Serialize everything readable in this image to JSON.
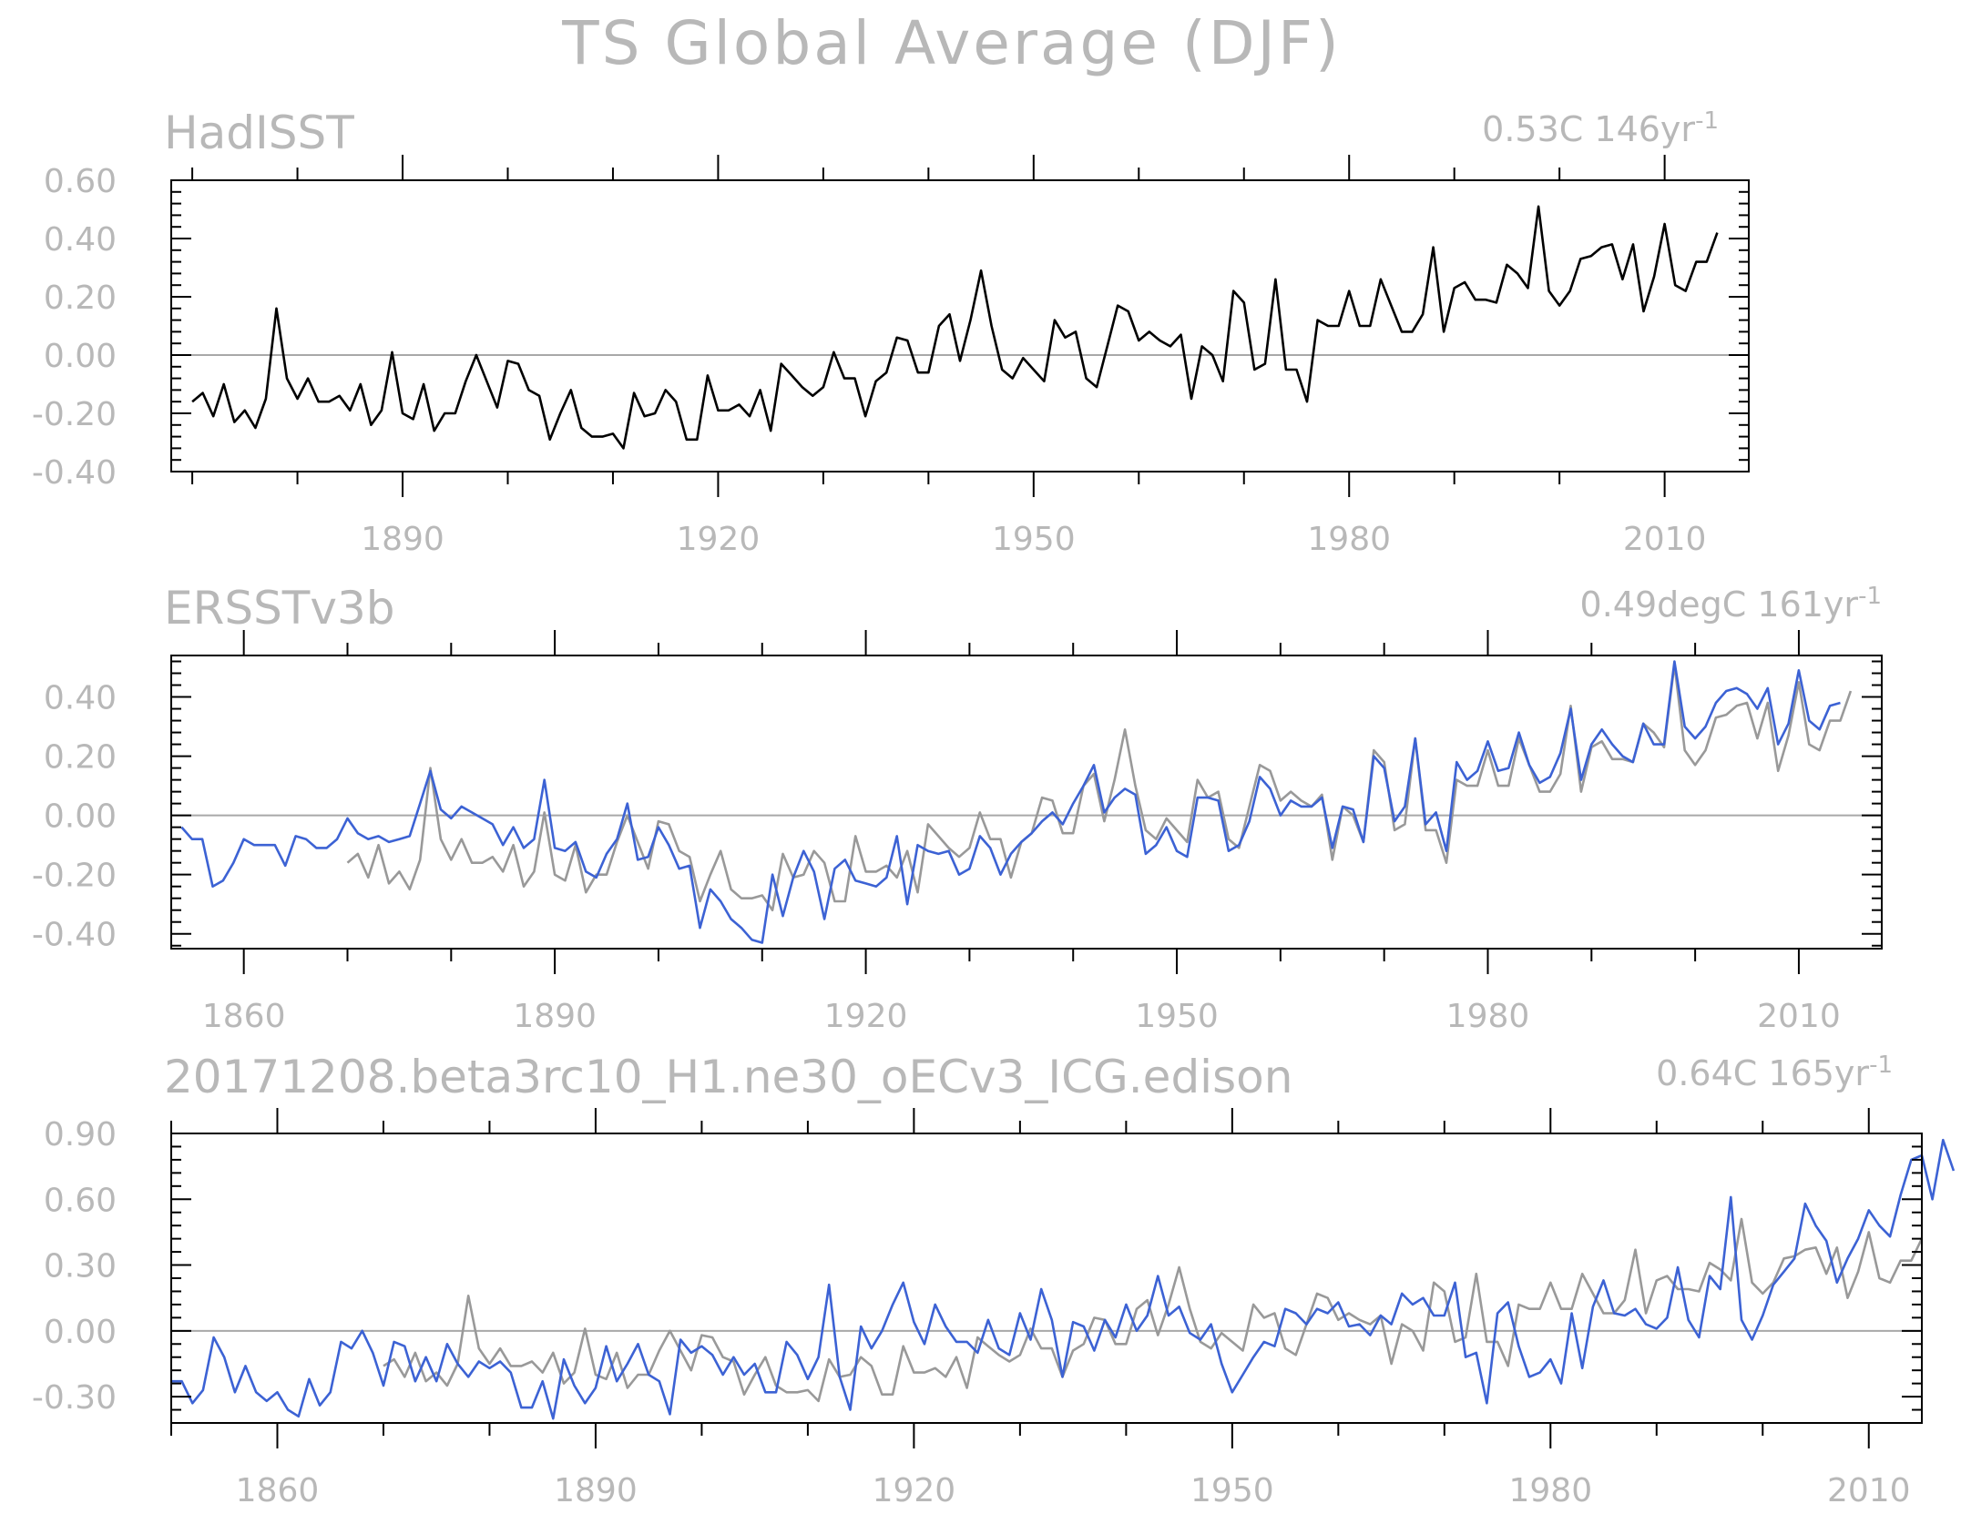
{
  "figure": {
    "title": "TS Global Average (DJF)"
  },
  "colors": {
    "observations": "#000000",
    "reference": "#999999",
    "primary": "#3c62d4",
    "zero_line": "#a8a8a8",
    "text": "#b8b8b8"
  },
  "chart_data": [
    {
      "type": "line",
      "title": "HadISST",
      "trend_value": "0.53C",
      "trend_period": "146yr",
      "trend_exponent": "-1",
      "xlim": [
        1868,
        2018
      ],
      "ylim": [
        -0.4,
        0.6
      ],
      "yticks": [
        -0.4,
        -0.2,
        0.0,
        0.2,
        0.4,
        0.6
      ],
      "ytick_labels": [
        "-0.40",
        "-0.20",
        "0.00",
        "0.20",
        "0.40",
        "0.60"
      ],
      "xticks": [
        1890,
        1920,
        1950,
        1980,
        2010
      ],
      "xtick_labels": [
        "1890",
        "1920",
        "1950",
        "1980",
        "2010"
      ],
      "zero_line": true,
      "series": [
        {
          "color": "#000000",
          "x_start": 1870,
          "values": [
            -0.16,
            -0.13,
            -0.21,
            -0.1,
            -0.23,
            -0.19,
            -0.25,
            -0.15,
            0.16,
            -0.08,
            -0.15,
            -0.08,
            -0.16,
            -0.16,
            -0.14,
            -0.19,
            -0.1,
            -0.24,
            -0.19,
            0.01,
            -0.2,
            -0.22,
            -0.1,
            -0.26,
            -0.2,
            -0.2,
            -0.09,
            0.0,
            -0.09,
            -0.18,
            -0.02,
            -0.03,
            -0.12,
            -0.14,
            -0.29,
            -0.2,
            -0.12,
            -0.25,
            -0.28,
            -0.28,
            -0.27,
            -0.32,
            -0.13,
            -0.21,
            -0.2,
            -0.12,
            -0.16,
            -0.29,
            -0.29,
            -0.07,
            -0.19,
            -0.19,
            -0.17,
            -0.21,
            -0.12,
            -0.26,
            -0.03,
            -0.07,
            -0.11,
            -0.14,
            -0.11,
            0.01,
            -0.08,
            -0.08,
            -0.21,
            -0.09,
            -0.06,
            0.06,
            0.05,
            -0.06,
            -0.06,
            0.1,
            0.14,
            -0.02,
            0.12,
            0.29,
            0.1,
            -0.05,
            -0.08,
            -0.01,
            -0.05,
            -0.09,
            0.12,
            0.06,
            0.08,
            -0.08,
            -0.11,
            0.03,
            0.17,
            0.15,
            0.05,
            0.08,
            0.05,
            0.03,
            0.07,
            -0.15,
            0.03,
            0.0,
            -0.09,
            0.22,
            0.18,
            -0.05,
            -0.03,
            0.26,
            -0.05,
            -0.05,
            -0.16,
            0.12,
            0.1,
            0.1,
            0.22,
            0.1,
            0.1,
            0.26,
            0.17,
            0.08,
            0.08,
            0.14,
            0.37,
            0.08,
            0.23,
            0.25,
            0.19,
            0.19,
            0.18,
            0.31,
            0.28,
            0.23,
            0.51,
            0.22,
            0.17,
            0.22,
            0.33,
            0.34,
            0.37,
            0.38,
            0.26,
            0.38,
            0.15,
            0.27,
            0.45,
            0.24,
            0.22,
            0.32,
            0.32,
            0.42
          ]
        }
      ]
    },
    {
      "type": "line",
      "title": "ERSSTv3b",
      "trend_value": "0.49degC",
      "trend_period": "161yr",
      "trend_exponent": "-1",
      "xlim": [
        1853,
        2018
      ],
      "ylim": [
        -0.45,
        0.54
      ],
      "yticks": [
        -0.4,
        -0.2,
        0.0,
        0.2,
        0.4
      ],
      "ytick_labels": [
        "-0.40",
        "-0.20",
        "0.00",
        "0.20",
        "0.40"
      ],
      "xticks": [
        1860,
        1890,
        1920,
        1950,
        1980,
        2010
      ],
      "xtick_labels": [
        "1860",
        "1890",
        "1920",
        "1950",
        "1980",
        "2010"
      ],
      "zero_line": true,
      "series": [
        {
          "color": "#999999",
          "x_start": 1870,
          "values": [
            -0.16,
            -0.13,
            -0.21,
            -0.1,
            -0.23,
            -0.19,
            -0.25,
            -0.15,
            0.16,
            -0.08,
            -0.15,
            -0.08,
            -0.16,
            -0.16,
            -0.14,
            -0.19,
            -0.1,
            -0.24,
            -0.19,
            0.01,
            -0.2,
            -0.22,
            -0.1,
            -0.26,
            -0.2,
            -0.2,
            -0.09,
            0.0,
            -0.09,
            -0.18,
            -0.02,
            -0.03,
            -0.12,
            -0.14,
            -0.29,
            -0.2,
            -0.12,
            -0.25,
            -0.28,
            -0.28,
            -0.27,
            -0.32,
            -0.13,
            -0.21,
            -0.2,
            -0.12,
            -0.16,
            -0.29,
            -0.29,
            -0.07,
            -0.19,
            -0.19,
            -0.17,
            -0.21,
            -0.12,
            -0.26,
            -0.03,
            -0.07,
            -0.11,
            -0.14,
            -0.11,
            0.01,
            -0.08,
            -0.08,
            -0.21,
            -0.09,
            -0.06,
            0.06,
            0.05,
            -0.06,
            -0.06,
            0.1,
            0.14,
            -0.02,
            0.12,
            0.29,
            0.1,
            -0.05,
            -0.08,
            -0.01,
            -0.05,
            -0.09,
            0.12,
            0.06,
            0.08,
            -0.08,
            -0.11,
            0.03,
            0.17,
            0.15,
            0.05,
            0.08,
            0.05,
            0.03,
            0.07,
            -0.15,
            0.03,
            0.0,
            -0.09,
            0.22,
            0.18,
            -0.05,
            -0.03,
            0.26,
            -0.05,
            -0.05,
            -0.16,
            0.12,
            0.1,
            0.1,
            0.22,
            0.1,
            0.1,
            0.26,
            0.17,
            0.08,
            0.08,
            0.14,
            0.37,
            0.08,
            0.23,
            0.25,
            0.19,
            0.19,
            0.18,
            0.31,
            0.28,
            0.23,
            0.51,
            0.22,
            0.17,
            0.22,
            0.33,
            0.34,
            0.37,
            0.38,
            0.26,
            0.38,
            0.15,
            0.27,
            0.45,
            0.24,
            0.22,
            0.32,
            0.32,
            0.42
          ]
        },
        {
          "color": "#3c62d4",
          "x_start": 1854,
          "values": [
            -0.04,
            -0.08,
            -0.08,
            -0.24,
            -0.22,
            -0.16,
            -0.08,
            -0.1,
            -0.1,
            -0.1,
            -0.17,
            -0.07,
            -0.08,
            -0.11,
            -0.11,
            -0.08,
            -0.01,
            -0.06,
            -0.08,
            -0.07,
            -0.09,
            -0.08,
            -0.07,
            0.04,
            0.15,
            0.02,
            -0.01,
            0.03,
            0.01,
            -0.01,
            -0.03,
            -0.1,
            -0.04,
            -0.11,
            -0.08,
            0.12,
            -0.11,
            -0.12,
            -0.09,
            -0.19,
            -0.21,
            -0.13,
            -0.08,
            0.04,
            -0.15,
            -0.14,
            -0.04,
            -0.1,
            -0.18,
            -0.17,
            -0.38,
            -0.25,
            -0.29,
            -0.35,
            -0.38,
            -0.42,
            -0.43,
            -0.2,
            -0.34,
            -0.21,
            -0.12,
            -0.19,
            -0.35,
            -0.18,
            -0.15,
            -0.22,
            -0.23,
            -0.24,
            -0.21,
            -0.07,
            -0.3,
            -0.1,
            -0.12,
            -0.13,
            -0.12,
            -0.2,
            -0.18,
            -0.07,
            -0.11,
            -0.2,
            -0.13,
            -0.09,
            -0.06,
            -0.02,
            0.01,
            -0.03,
            0.04,
            0.1,
            0.17,
            0.01,
            0.06,
            0.09,
            0.07,
            -0.13,
            -0.1,
            -0.04,
            -0.12,
            -0.14,
            0.06,
            0.06,
            0.05,
            -0.12,
            -0.1,
            -0.02,
            0.13,
            0.09,
            0.0,
            0.05,
            0.03,
            0.03,
            0.06,
            -0.11,
            0.03,
            0.02,
            -0.09,
            0.2,
            0.16,
            -0.02,
            0.03,
            0.26,
            -0.03,
            0.01,
            -0.12,
            0.18,
            0.12,
            0.15,
            0.25,
            0.15,
            0.16,
            0.28,
            0.17,
            0.11,
            0.13,
            0.21,
            0.36,
            0.12,
            0.24,
            0.29,
            0.24,
            0.2,
            0.18,
            0.31,
            0.24,
            0.24,
            0.52,
            0.3,
            0.26,
            0.3,
            0.38,
            0.42,
            0.43,
            0.41,
            0.36,
            0.43,
            0.24,
            0.31,
            0.49,
            0.32,
            0.29,
            0.37,
            0.38
          ]
        }
      ]
    },
    {
      "type": "line",
      "title": "20171208.beta3rc10_H1.ne30_oECv3_ICG.edison",
      "trend_value": "0.64C",
      "trend_period": "165yr",
      "trend_exponent": "-1",
      "xlim": [
        1850,
        2015
      ],
      "ylim": [
        -0.42,
        0.9
      ],
      "yticks": [
        -0.3,
        0.0,
        0.3,
        0.6,
        0.9
      ],
      "ytick_labels": [
        "-0.30",
        "0.00",
        "0.30",
        "0.60",
        "0.90"
      ],
      "xticks": [
        1860,
        1890,
        1920,
        1950,
        1980,
        2010
      ],
      "xtick_labels": [
        "1860",
        "1890",
        "1920",
        "1950",
        "1980",
        "2010"
      ],
      "zero_line": true,
      "series": [
        {
          "color": "#999999",
          "x_start": 1870,
          "values": [
            -0.16,
            -0.13,
            -0.21,
            -0.1,
            -0.23,
            -0.19,
            -0.25,
            -0.15,
            0.16,
            -0.08,
            -0.15,
            -0.08,
            -0.16,
            -0.16,
            -0.14,
            -0.19,
            -0.1,
            -0.24,
            -0.19,
            0.01,
            -0.2,
            -0.22,
            -0.1,
            -0.26,
            -0.2,
            -0.2,
            -0.09,
            0.0,
            -0.09,
            -0.18,
            -0.02,
            -0.03,
            -0.12,
            -0.14,
            -0.29,
            -0.2,
            -0.12,
            -0.25,
            -0.28,
            -0.28,
            -0.27,
            -0.32,
            -0.13,
            -0.21,
            -0.2,
            -0.12,
            -0.16,
            -0.29,
            -0.29,
            -0.07,
            -0.19,
            -0.19,
            -0.17,
            -0.21,
            -0.12,
            -0.26,
            -0.03,
            -0.07,
            -0.11,
            -0.14,
            -0.11,
            0.01,
            -0.08,
            -0.08,
            -0.21,
            -0.09,
            -0.06,
            0.06,
            0.05,
            -0.06,
            -0.06,
            0.1,
            0.14,
            -0.02,
            0.12,
            0.29,
            0.1,
            -0.05,
            -0.08,
            -0.01,
            -0.05,
            -0.09,
            0.12,
            0.06,
            0.08,
            -0.08,
            -0.11,
            0.03,
            0.17,
            0.15,
            0.05,
            0.08,
            0.05,
            0.03,
            0.07,
            -0.15,
            0.03,
            0.0,
            -0.09,
            0.22,
            0.18,
            -0.05,
            -0.03,
            0.26,
            -0.05,
            -0.05,
            -0.16,
            0.12,
            0.1,
            0.1,
            0.22,
            0.1,
            0.1,
            0.26,
            0.17,
            0.08,
            0.08,
            0.14,
            0.37,
            0.08,
            0.23,
            0.25,
            0.19,
            0.19,
            0.18,
            0.31,
            0.28,
            0.23,
            0.51,
            0.22,
            0.17,
            0.22,
            0.33,
            0.34,
            0.37,
            0.38,
            0.26,
            0.38,
            0.15,
            0.27,
            0.45,
            0.24,
            0.22,
            0.32,
            0.32,
            0.42
          ]
        },
        {
          "color": "#3c62d4",
          "x_start": 1850,
          "values": [
            -0.23,
            -0.23,
            -0.33,
            -0.27,
            -0.03,
            -0.12,
            -0.28,
            -0.16,
            -0.28,
            -0.32,
            -0.28,
            -0.36,
            -0.39,
            -0.22,
            -0.34,
            -0.28,
            -0.05,
            -0.08,
            0.0,
            -0.1,
            -0.25,
            -0.05,
            -0.07,
            -0.23,
            -0.12,
            -0.23,
            -0.06,
            -0.15,
            -0.21,
            -0.14,
            -0.17,
            -0.14,
            -0.19,
            -0.35,
            -0.35,
            -0.23,
            -0.4,
            -0.13,
            -0.25,
            -0.33,
            -0.26,
            -0.07,
            -0.23,
            -0.15,
            -0.06,
            -0.2,
            -0.23,
            -0.38,
            -0.04,
            -0.1,
            -0.07,
            -0.11,
            -0.2,
            -0.12,
            -0.2,
            -0.15,
            -0.28,
            -0.28,
            -0.05,
            -0.11,
            -0.22,
            -0.12,
            0.21,
            -0.21,
            -0.36,
            0.02,
            -0.08,
            0.0,
            0.12,
            0.22,
            0.04,
            -0.06,
            0.12,
            0.02,
            -0.05,
            -0.05,
            -0.1,
            0.05,
            -0.08,
            -0.11,
            0.08,
            -0.04,
            0.19,
            0.05,
            -0.21,
            0.04,
            0.02,
            -0.09,
            0.05,
            -0.03,
            0.12,
            0.0,
            0.07,
            0.25,
            0.07,
            0.11,
            -0.01,
            -0.04,
            0.03,
            -0.15,
            -0.28,
            -0.2,
            -0.12,
            -0.05,
            -0.07,
            0.1,
            0.08,
            0.03,
            0.1,
            0.08,
            0.13,
            0.02,
            0.03,
            -0.02,
            0.07,
            0.03,
            0.17,
            0.12,
            0.15,
            0.07,
            0.07,
            0.22,
            -0.12,
            -0.1,
            -0.33,
            0.08,
            0.13,
            -0.07,
            -0.21,
            -0.19,
            -0.13,
            -0.24,
            0.08,
            -0.17,
            0.11,
            0.23,
            0.08,
            0.07,
            0.1,
            0.03,
            0.01,
            0.06,
            0.29,
            0.05,
            -0.03,
            0.25,
            0.19,
            0.61,
            0.05,
            -0.04,
            0.07,
            0.21,
            0.27,
            0.33,
            0.58,
            0.48,
            0.41,
            0.22,
            0.33,
            0.42,
            0.55,
            0.48,
            0.43,
            0.62,
            0.78,
            0.8,
            0.6,
            0.87,
            0.73
          ]
        }
      ]
    }
  ]
}
